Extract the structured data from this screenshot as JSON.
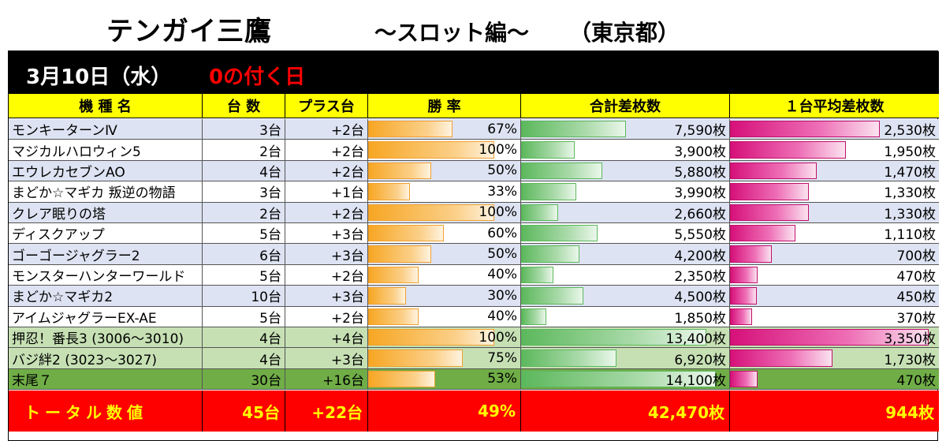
{
  "header": {
    "title": "テンガイ三鷹",
    "subtitle": "～スロット編～",
    "region": "（東京都）"
  },
  "dateband": {
    "date": "3月10日（水）",
    "note": "0の付く日"
  },
  "columns": {
    "name": "機 種 名",
    "units": "台 数",
    "plus": "プラス台",
    "winrate": "勝 率",
    "total_diff": "合計差枚数",
    "avg_diff": "１台平均差枚数"
  },
  "rows": [
    {
      "name": "モンキーターンⅣ",
      "units": "3台",
      "plus": "+2台",
      "winrate": "67%",
      "winrate_value": 67,
      "total": "7,590枚",
      "total_value": 7590,
      "avg": "2,530枚",
      "avg_value": 2530,
      "bg": "#dde3f2"
    },
    {
      "name": "マジカルハロウィン5",
      "units": "2台",
      "plus": "+2台",
      "winrate": "100%",
      "winrate_value": 100,
      "total": "3,900枚",
      "total_value": 3900,
      "avg": "1,950枚",
      "avg_value": 1950,
      "bg": "#ffffff"
    },
    {
      "name": "エウレカセブンAO",
      "units": "4台",
      "plus": "+2台",
      "winrate": "50%",
      "winrate_value": 50,
      "total": "5,880枚",
      "total_value": 5880,
      "avg": "1,470枚",
      "avg_value": 1470,
      "bg": "#dde3f2"
    },
    {
      "name": "まどか☆マギカ 叛逆の物語",
      "units": "3台",
      "plus": "+1台",
      "winrate": "33%",
      "winrate_value": 33,
      "total": "3,990枚",
      "total_value": 3990,
      "avg": "1,330枚",
      "avg_value": 1330,
      "bg": "#ffffff"
    },
    {
      "name": "クレア眠りの塔",
      "units": "2台",
      "plus": "+2台",
      "winrate": "100%",
      "winrate_value": 100,
      "total": "2,660枚",
      "total_value": 2660,
      "avg": "1,330枚",
      "avg_value": 1330,
      "bg": "#dde3f2"
    },
    {
      "name": "ディスクアップ",
      "units": "5台",
      "plus": "+3台",
      "winrate": "60%",
      "winrate_value": 60,
      "total": "5,550枚",
      "total_value": 5550,
      "avg": "1,110枚",
      "avg_value": 1110,
      "bg": "#ffffff"
    },
    {
      "name": "ゴーゴージャグラー2",
      "units": "6台",
      "plus": "+3台",
      "winrate": "50%",
      "winrate_value": 50,
      "total": "4,200枚",
      "total_value": 4200,
      "avg": "700枚",
      "avg_value": 700,
      "bg": "#dde3f2"
    },
    {
      "name": "モンスターハンターワールド",
      "units": "5台",
      "plus": "+2台",
      "winrate": "40%",
      "winrate_value": 40,
      "total": "2,350枚",
      "total_value": 2350,
      "avg": "470枚",
      "avg_value": 470,
      "bg": "#ffffff"
    },
    {
      "name": "まどか☆マギカ2",
      "units": "10台",
      "plus": "+3台",
      "winrate": "30%",
      "winrate_value": 30,
      "total": "4,500枚",
      "total_value": 4500,
      "avg": "450枚",
      "avg_value": 450,
      "bg": "#dde3f2"
    },
    {
      "name": "アイムジャグラーEX-AE",
      "units": "5台",
      "plus": "+2台",
      "winrate": "40%",
      "winrate_value": 40,
      "total": "1,850枚",
      "total_value": 1850,
      "avg": "370枚",
      "avg_value": 370,
      "bg": "#ffffff"
    },
    {
      "name": "押忍！番長3 (3006～3010)",
      "units": "4台",
      "plus": "+4台",
      "winrate": "100%",
      "winrate_value": 100,
      "total": "13,400枚",
      "total_value": 13400,
      "avg": "3,350枚",
      "avg_value": 3350,
      "bg": "#c6e0b4"
    },
    {
      "name": "バジ絆2 (3023～3027)",
      "units": "4台",
      "plus": "+3台",
      "winrate": "75%",
      "winrate_value": 75,
      "total": "6,920枚",
      "total_value": 6920,
      "avg": "1,730枚",
      "avg_value": 1730,
      "bg": "#c6e0b4"
    },
    {
      "name": "末尾７",
      "units": "30台",
      "plus": "+16台",
      "winrate": "53%",
      "winrate_value": 53,
      "total": "14,100枚",
      "total_value": 14100,
      "avg": "470枚",
      "avg_value": 470,
      "bg": "#70ad47"
    }
  ],
  "total": {
    "label": "トータル数値",
    "units": "45台",
    "plus": "+22台",
    "winrate": "49%",
    "total": "42,470枚",
    "avg": "944枚"
  },
  "scales": {
    "winrate_max": 120,
    "total_max": 15000,
    "avg_max": 3500
  },
  "colors": {
    "row_blue": "#dde3f2",
    "row_green": "#c6e0b4",
    "row_dark_green": "#70ad47",
    "header_yellow": "#ffff00",
    "total_red": "#ff0000",
    "total_text": "#ffff00",
    "date_note": "#ff0000"
  }
}
